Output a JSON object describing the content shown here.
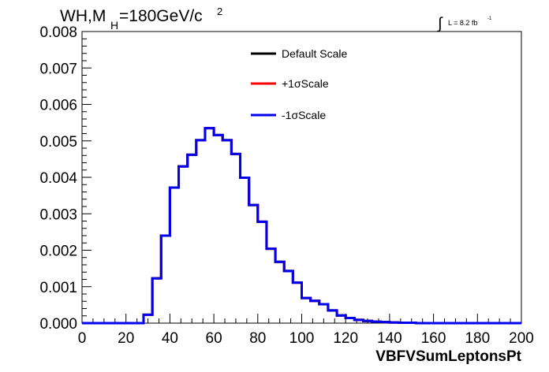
{
  "header": {
    "title_prefix": "WH,M",
    "title_sub": "H",
    "title_main": "=180GeV/c",
    "title_sup": "2",
    "lumi_integral": "∫",
    "lumi_text": "L = 8.2 fb",
    "lumi_sup": "-1"
  },
  "chart_data": {
    "type": "line",
    "xlabel": "VBFVSumLeptonsPt",
    "ylabel": "",
    "xlim": [
      0,
      200
    ],
    "ylim": [
      0,
      0.008
    ],
    "x_ticks": [
      "0",
      "20",
      "40",
      "60",
      "80",
      "100",
      "120",
      "140",
      "160",
      "180",
      "200"
    ],
    "y_ticks": [
      "0.000",
      "0.001",
      "0.002",
      "0.003",
      "0.004",
      "0.005",
      "0.006",
      "0.007",
      "0.008"
    ],
    "bin_edges": [
      0,
      4,
      8,
      12,
      16,
      20,
      24,
      28,
      32,
      36,
      40,
      44,
      48,
      52,
      56,
      60,
      64,
      68,
      72,
      76,
      80,
      84,
      88,
      92,
      96,
      100,
      104,
      108,
      112,
      116,
      120,
      124,
      128,
      132,
      136,
      140,
      144,
      148,
      152,
      156,
      160,
      164,
      168,
      172,
      176,
      180,
      184,
      188,
      192,
      196,
      200
    ],
    "series": [
      {
        "name": "Default Scale",
        "color": "#000000",
        "values": [
          0,
          0,
          0,
          0,
          0,
          0,
          0,
          0.00023,
          0.00123,
          0.0024,
          0.00372,
          0.0043,
          0.00462,
          0.00502,
          0.00535,
          0.00516,
          0.00502,
          0.00464,
          0.00399,
          0.00324,
          0.00278,
          0.00204,
          0.00168,
          0.00143,
          0.00111,
          0.00069,
          0.00061,
          0.00052,
          0.00035,
          0.00021,
          0.00014,
          9e-05,
          6e-05,
          4e-05,
          3e-05,
          2e-05,
          1e-05,
          1e-05,
          0,
          0,
          0,
          0,
          0,
          0,
          0,
          0,
          0,
          0,
          0,
          0
        ]
      },
      {
        "name": "+1σScale",
        "color": "#ff0000",
        "values": [
          0,
          0,
          0,
          0,
          0,
          0,
          0,
          0.00023,
          0.00123,
          0.0024,
          0.00372,
          0.0043,
          0.00462,
          0.00502,
          0.00535,
          0.00516,
          0.00502,
          0.00464,
          0.00399,
          0.00324,
          0.00278,
          0.00204,
          0.00168,
          0.00143,
          0.00111,
          0.00069,
          0.00061,
          0.00052,
          0.00035,
          0.00021,
          0.00014,
          9e-05,
          6e-05,
          4e-05,
          3e-05,
          2e-05,
          1e-05,
          1e-05,
          0,
          0,
          0,
          0,
          0,
          0,
          0,
          0,
          0,
          0,
          0,
          0
        ]
      },
      {
        "name": "-1σScale",
        "color": "#0000ee",
        "values": [
          0,
          0,
          0,
          0,
          0,
          0,
          0,
          0.00023,
          0.00123,
          0.0024,
          0.00372,
          0.0043,
          0.00462,
          0.00502,
          0.00535,
          0.00516,
          0.00502,
          0.00464,
          0.00399,
          0.00324,
          0.00278,
          0.00204,
          0.00168,
          0.00143,
          0.00111,
          0.00069,
          0.00061,
          0.00052,
          0.00035,
          0.00021,
          0.00014,
          9e-05,
          6e-05,
          4e-05,
          3e-05,
          2e-05,
          1e-05,
          1e-05,
          0,
          0,
          0,
          0,
          0,
          0,
          0,
          0,
          0,
          0,
          0,
          0
        ]
      }
    ],
    "legend_position": "top-right",
    "grid": false
  }
}
